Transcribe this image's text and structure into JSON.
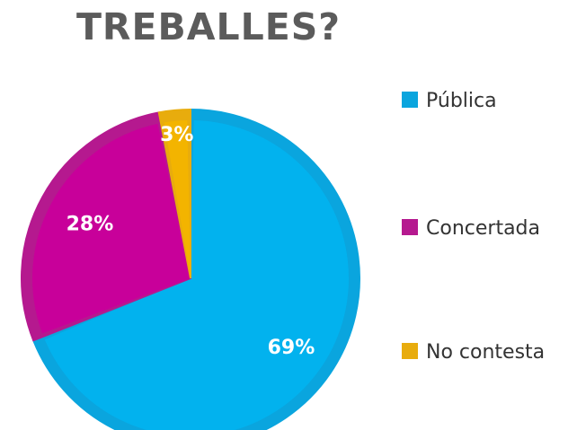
{
  "chart_data": {
    "type": "pie",
    "title": "TREBALLES?",
    "slices": [
      {
        "label": "Pública",
        "value": 69,
        "value_label": "69%",
        "color": "#0aa5de"
      },
      {
        "label": "Concertada",
        "value": 28,
        "value_label": "28%",
        "color": "#b5198f"
      },
      {
        "label": "No contesta",
        "value": 3,
        "value_label": "3%",
        "color": "#e8ac0d"
      }
    ],
    "legend_position": "right"
  },
  "colors": {
    "publica_inner": "#02b2ee",
    "concertada_inner": "#c8009a",
    "no_contesta_inner": "#f3b400"
  }
}
